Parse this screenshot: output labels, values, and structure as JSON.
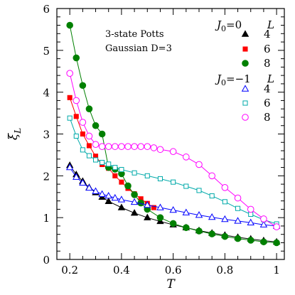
{
  "chart_data": {
    "type": "line",
    "xlabel": "T",
    "ylabel": "ξ_L",
    "xlim": [
      0.15,
      1.03
    ],
    "ylim": [
      0,
      6
    ],
    "x_ticks": [
      "0.2",
      "0.4",
      "0.6",
      "0.8",
      "1"
    ],
    "y_ticks": [
      "0",
      "1",
      "2",
      "3",
      "4",
      "5",
      "6"
    ],
    "annotations": [
      "3-state Potts",
      "Gaussian D=3"
    ],
    "legend_groups": [
      {
        "header": "J₀=0",
        "column": "L"
      },
      {
        "header": "J₀=−1",
        "column": "L"
      }
    ],
    "series": [
      {
        "name": "4",
        "group": 0,
        "marker": "triangle-filled",
        "color": "#000000",
        "x": [
          0.2,
          0.225,
          0.25,
          0.275,
          0.3,
          0.325,
          0.35,
          0.4,
          0.45,
          0.5,
          0.55,
          0.6,
          0.65,
          0.7,
          0.75,
          0.8,
          0.85,
          0.9,
          0.95,
          1.0
        ],
        "y": [
          2.25,
          2.03,
          1.87,
          1.72,
          1.6,
          1.49,
          1.39,
          1.24,
          1.11,
          1.0,
          0.91,
          0.83,
          0.76,
          0.69,
          0.63,
          0.58,
          0.53,
          0.49,
          0.45,
          0.42
        ]
      },
      {
        "name": "6",
        "group": 0,
        "marker": "square-filled",
        "color": "#ff0000",
        "x": [
          0.2,
          0.225,
          0.25,
          0.275,
          0.3,
          0.325,
          0.35,
          0.375,
          0.4,
          0.425,
          0.45,
          0.475,
          0.5,
          0.525
        ],
        "y": [
          3.87,
          3.42,
          3.0,
          2.72,
          2.47,
          2.27,
          2.18,
          2.0,
          1.85,
          1.7,
          1.57,
          1.45,
          1.34,
          1.24
        ]
      },
      {
        "name": "8",
        "group": 0,
        "marker": "circle-filled",
        "color": "#008000",
        "x": [
          0.2,
          0.225,
          0.25,
          0.275,
          0.3,
          0.325,
          0.35,
          0.375,
          0.4,
          0.425,
          0.45,
          0.475,
          0.5,
          0.55,
          0.6,
          0.65,
          0.7,
          0.75,
          0.8,
          0.85,
          0.9,
          0.95,
          1.0
        ],
        "y": [
          5.6,
          4.82,
          4.16,
          3.6,
          3.2,
          3.0,
          2.2,
          2.16,
          2.05,
          1.76,
          1.55,
          1.35,
          1.2,
          1.0,
          0.86,
          0.76,
          0.68,
          0.61,
          0.55,
          0.5,
          0.46,
          0.42,
          0.4
        ]
      },
      {
        "name": "4",
        "group": 1,
        "marker": "triangle-open",
        "color": "#0000ff",
        "x": [
          0.2,
          0.225,
          0.25,
          0.275,
          0.3,
          0.325,
          0.35,
          0.375,
          0.4,
          0.45,
          0.5,
          0.55,
          0.6,
          0.65,
          0.7,
          0.75,
          0.8,
          0.85,
          0.9,
          0.95,
          1.0
        ],
        "y": [
          2.2,
          1.97,
          1.83,
          1.71,
          1.63,
          1.56,
          1.52,
          1.47,
          1.43,
          1.37,
          1.3,
          1.24,
          1.18,
          1.12,
          1.06,
          1.01,
          0.96,
          0.92,
          0.88,
          0.83,
          0.8
        ]
      },
      {
        "name": "6",
        "group": 1,
        "marker": "square-open",
        "color": "#00aaaa",
        "x": [
          0.2,
          0.225,
          0.25,
          0.275,
          0.3,
          0.325,
          0.35,
          0.375,
          0.4,
          0.45,
          0.5,
          0.55,
          0.6,
          0.65,
          0.7,
          0.75,
          0.8,
          0.85,
          0.9,
          0.95,
          1.0
        ],
        "y": [
          3.38,
          2.95,
          2.62,
          2.48,
          2.38,
          2.32,
          2.28,
          2.2,
          2.15,
          2.07,
          2.0,
          1.93,
          1.85,
          1.75,
          1.65,
          1.52,
          1.38,
          1.22,
          1.08,
          0.95,
          0.85
        ]
      },
      {
        "name": "8",
        "group": 1,
        "marker": "circle-open",
        "color": "#ff00ff",
        "x": [
          0.2,
          0.225,
          0.25,
          0.275,
          0.3,
          0.325,
          0.35,
          0.375,
          0.4,
          0.425,
          0.45,
          0.475,
          0.5,
          0.525,
          0.55,
          0.6,
          0.65,
          0.7,
          0.75,
          0.8,
          0.85,
          0.9,
          0.95,
          1.0
        ],
        "y": [
          4.45,
          3.8,
          3.28,
          2.95,
          2.75,
          2.7,
          2.7,
          2.7,
          2.7,
          2.7,
          2.7,
          2.7,
          2.7,
          2.67,
          2.63,
          2.58,
          2.45,
          2.27,
          2.0,
          1.72,
          1.47,
          1.2,
          0.97,
          0.78
        ]
      }
    ]
  }
}
